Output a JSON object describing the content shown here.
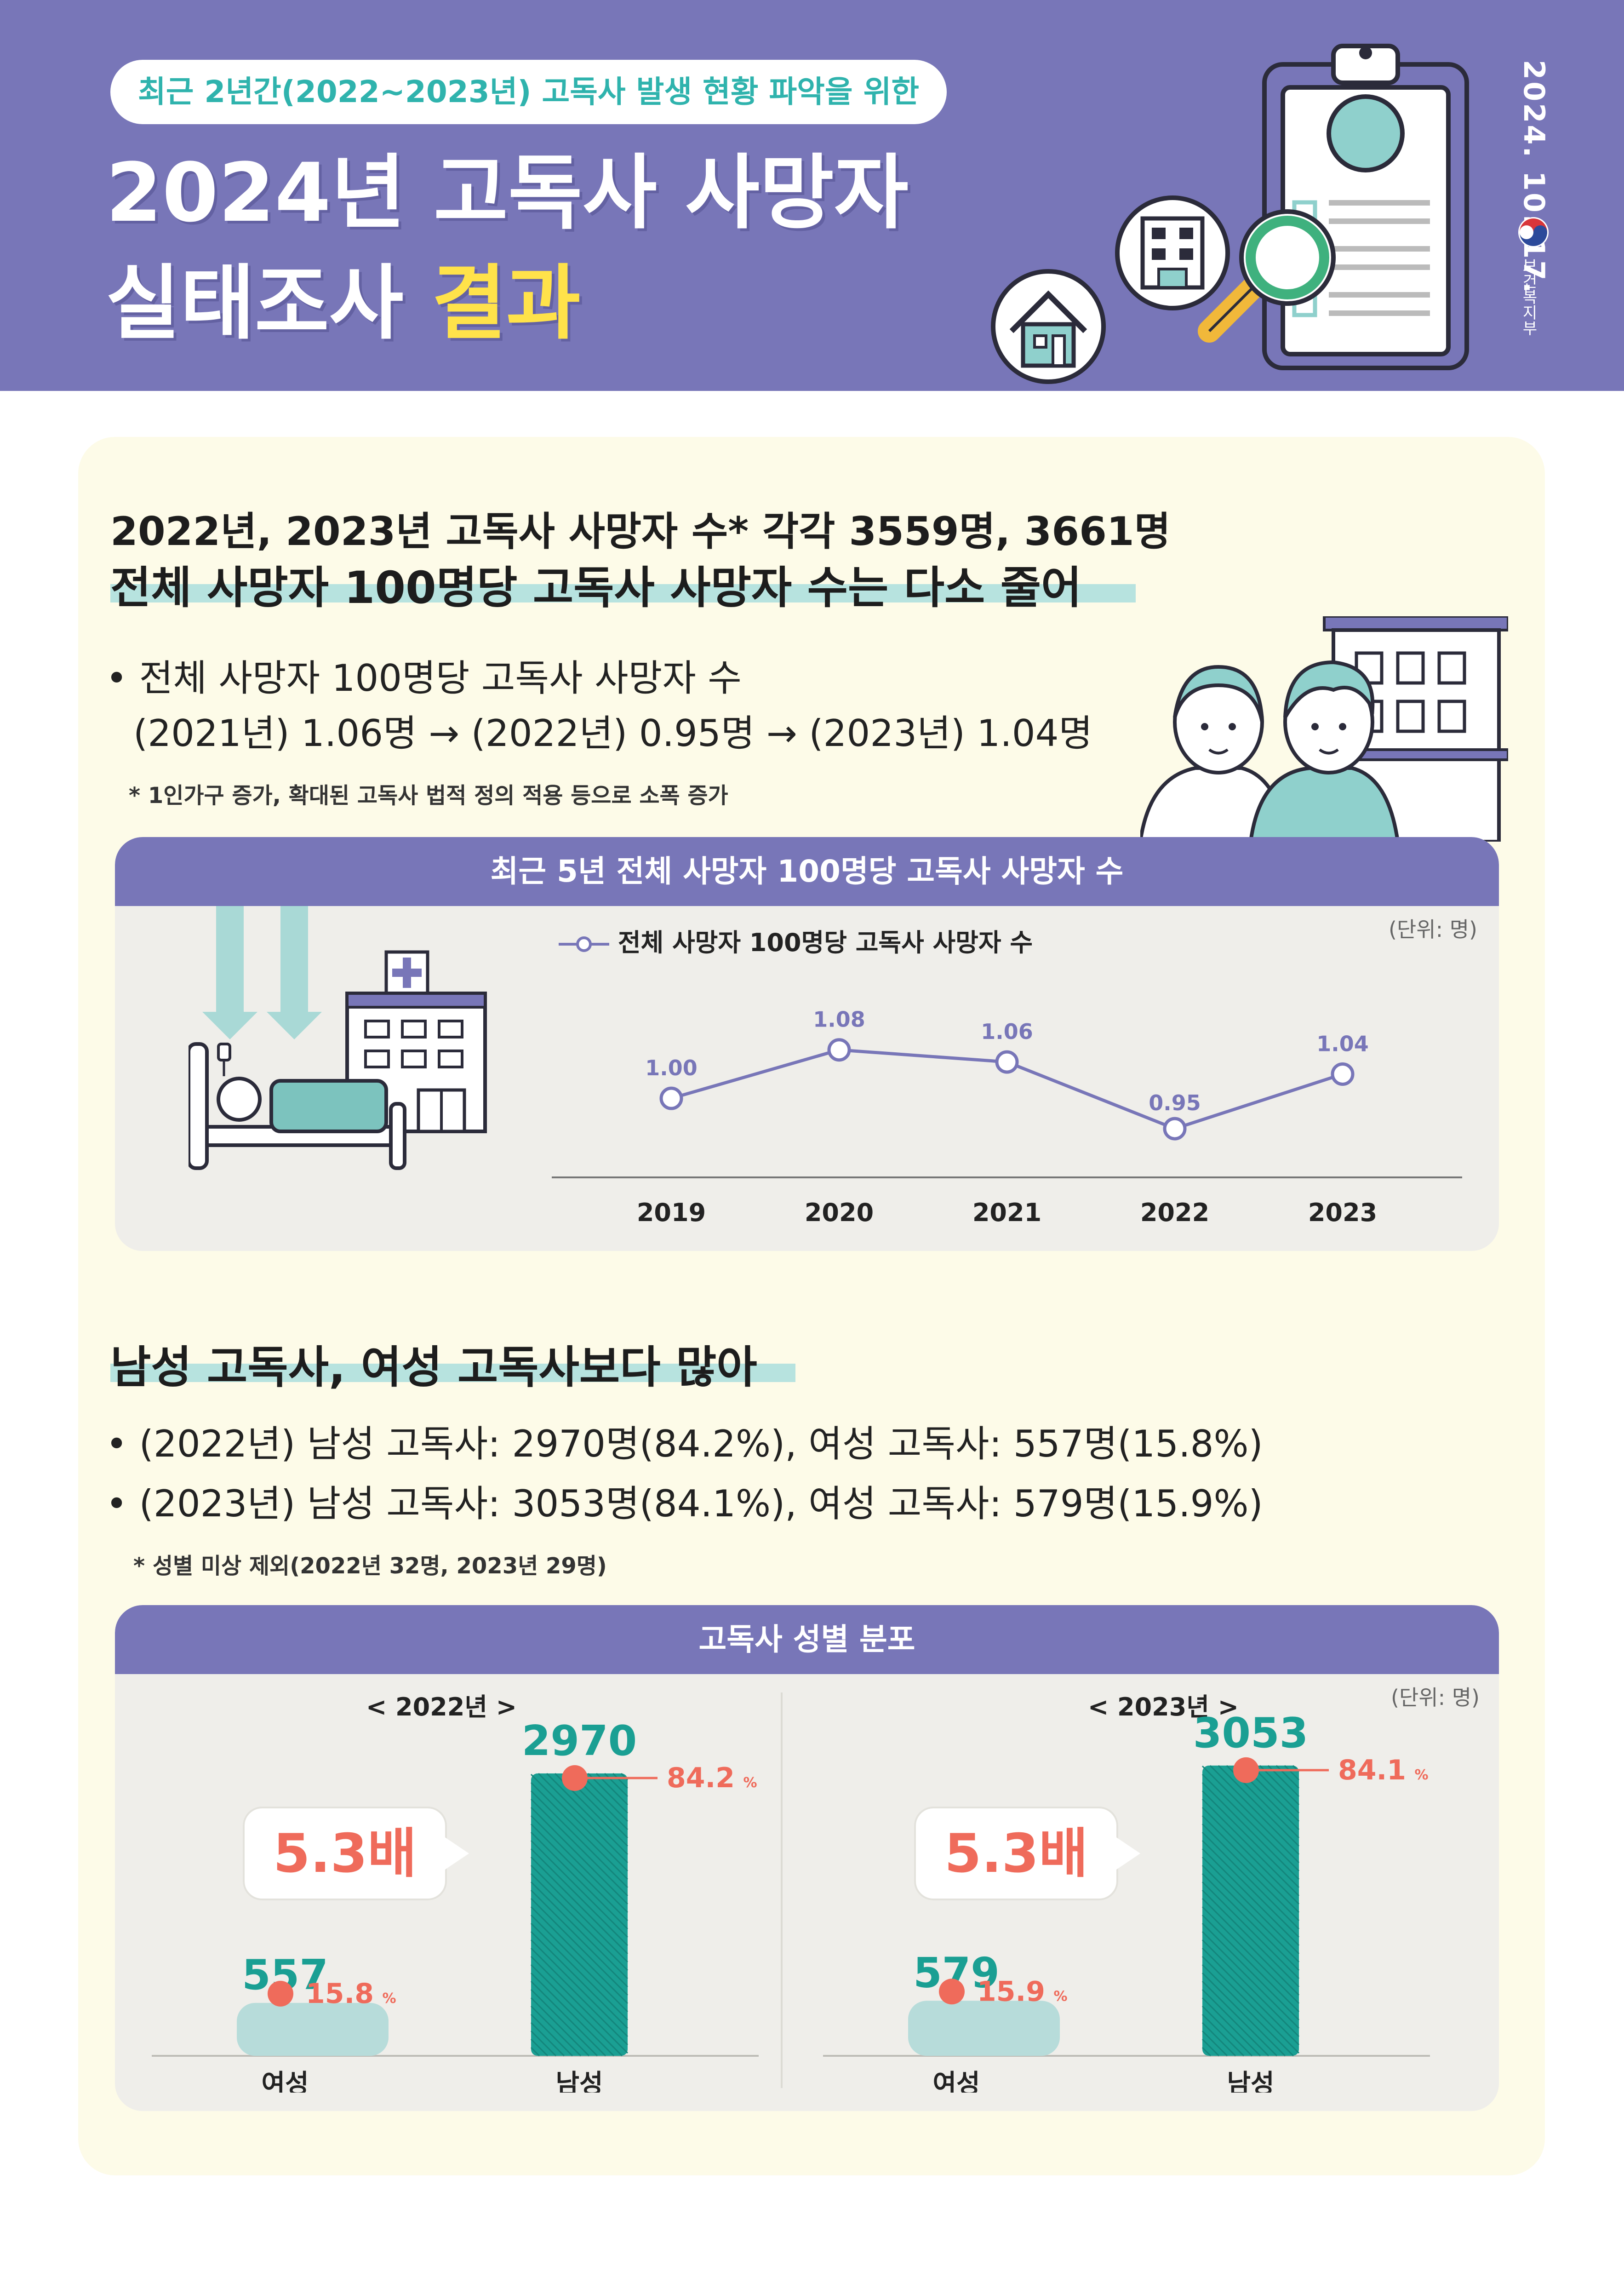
{
  "header": {
    "subtitle": "최근 2년간(2022~2023년) 고독사 발생 현황  파악을 위한",
    "title_line1": "2024년 고독사 사망자",
    "title_line2_a": "실태조사 ",
    "title_line2_b": "결과",
    "date": "2024. 10. 17.",
    "ministry": "보건복지부"
  },
  "section1": {
    "heading1": "2022년, 2023년 고독사 사망자 수* 각각 3559명, 3661명",
    "heading2": "전체 사망자 100명당 고독사 사망자 수는 다소 줄어",
    "bullet_line1": "• 전체 사망자 100명당 고독사 사망자 수",
    "bullet_line2": "(2021년) 1.06명 → (2022년) 0.95명 → (2023년) 1.04명",
    "note": "* 1인가구 증가, 확대된 고독사 법적 정의 적용 등으로 소폭 증가"
  },
  "chart1_meta": {
    "header": "최근 5년 전체 사망자 100명당 고독사 사망자 수",
    "unit": "(단위: 명)",
    "legend": "전체 사망자 100명당 고독사 사망자 수",
    "line_color": "#7876b8"
  },
  "section2": {
    "heading": "남성 고독사, 여성 고독사보다 많아",
    "bullet1": "• (2022년) 남성 고독사: 2970명(84.2%), 여성 고독사: 557명(15.8%)",
    "bullet2": "• (2023년) 남성 고독사: 3053명(84.1%), 여성 고독사: 579명(15.9%)",
    "note": "* 성별 미상 제외(2022년 32명, 2023년 29명)"
  },
  "chart2_meta": {
    "header": "고독사 성별 분포",
    "unit": "(단위: 명)",
    "ratio_label": "5.3배",
    "bar_color": "#1a9f93",
    "female_color": "#b7dcda",
    "dot_color": "#ef6b5b"
  },
  "chart_data": [
    {
      "type": "line",
      "title": "최근 5년 전체 사망자 100명당 고독사 사망자 수",
      "categories": [
        "2019",
        "2020",
        "2021",
        "2022",
        "2023"
      ],
      "values": [
        1.0,
        1.08,
        1.06,
        0.95,
        1.04
      ],
      "value_labels": [
        "1.00",
        "1.08",
        "1.06",
        "0.95",
        "1.04"
      ],
      "series_name": "전체 사망자 100명당 고독사 사망자 수",
      "ylim": [
        0.9,
        1.12
      ]
    },
    {
      "type": "bar",
      "title": "< 2022년 >",
      "categories": [
        "여성",
        "남성"
      ],
      "values": [
        557,
        2970
      ],
      "value_labels": [
        "557",
        "2970"
      ],
      "percent_labels": [
        "15.8",
        "84.2"
      ],
      "percent_unit": "%",
      "ylim": [
        0,
        3200
      ]
    },
    {
      "type": "bar",
      "title": "< 2023년 >",
      "categories": [
        "여성",
        "남성"
      ],
      "values": [
        579,
        3053
      ],
      "value_labels": [
        "579",
        "3053"
      ],
      "percent_labels": [
        "15.9",
        "84.1"
      ],
      "percent_unit": "%",
      "ylim": [
        0,
        3200
      ]
    }
  ]
}
